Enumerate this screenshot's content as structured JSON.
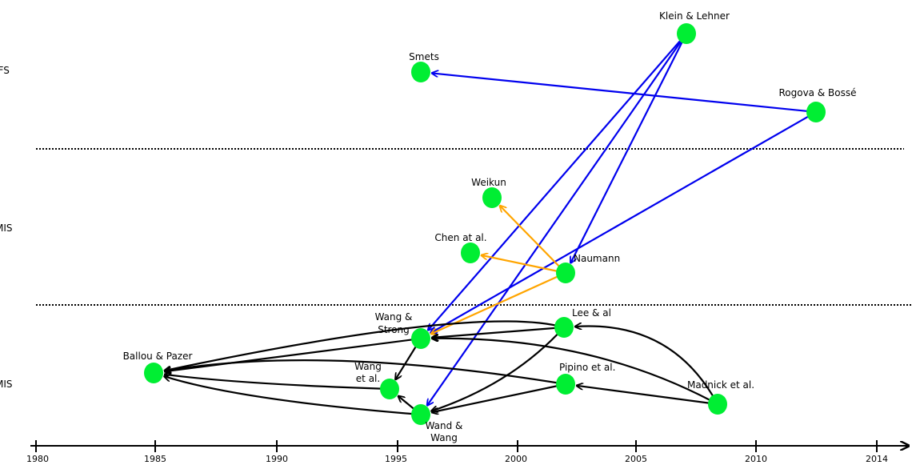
{
  "bands": [
    {
      "id": "ifs",
      "label": "IFS"
    },
    {
      "id": "mis2",
      "label": "MIS"
    },
    {
      "id": "mis1",
      "label": "MIS"
    }
  ],
  "timeline": {
    "ticks": [
      "1980",
      "1985",
      "1990",
      "1995",
      "2000",
      "2005",
      "2010",
      "2014"
    ]
  },
  "colors": {
    "node": "#00ee33",
    "black_edge": "#000000",
    "blue_edge": "#0000ee",
    "orange_edge": "#ffa500",
    "separator": "#000000"
  },
  "nodes": [
    {
      "id": "smets",
      "label": "Smets"
    },
    {
      "id": "klein",
      "label": "Klein & Lehner"
    },
    {
      "id": "rogova",
      "label": "Rogova & Bossé"
    },
    {
      "id": "weikun",
      "label": "Weikun"
    },
    {
      "id": "chen",
      "label": "Chen at al."
    },
    {
      "id": "naumann",
      "label": "Naumann"
    },
    {
      "id": "wangstrong",
      "label": "Wang &\nStrong"
    },
    {
      "id": "lee",
      "label": "Lee & al"
    },
    {
      "id": "ballou",
      "label": "Ballou & Pazer"
    },
    {
      "id": "pipino",
      "label": "Pipino et al."
    },
    {
      "id": "madnick",
      "label": "Madnick et al."
    },
    {
      "id": "wangetal",
      "label": "Wang\net al."
    },
    {
      "id": "wandwang",
      "label": "Wand &\nWang"
    }
  ],
  "edges": [
    {
      "from": "rogova",
      "to": "smets",
      "color": "blue"
    },
    {
      "from": "rogova",
      "to": "wangstrong",
      "color": "blue"
    },
    {
      "from": "klein",
      "to": "wangstrong",
      "color": "blue"
    },
    {
      "from": "klein",
      "to": "naumann",
      "color": "blue"
    },
    {
      "from": "klein",
      "to": "wandwang",
      "color": "blue"
    },
    {
      "from": "naumann",
      "to": "weikun",
      "color": "orange"
    },
    {
      "from": "naumann",
      "to": "chen",
      "color": "orange"
    },
    {
      "from": "naumann",
      "to": "wangstrong",
      "color": "orange"
    },
    {
      "from": "wangstrong",
      "to": "ballou",
      "color": "black"
    },
    {
      "from": "wangstrong",
      "to": "wangetal",
      "color": "black"
    },
    {
      "from": "lee",
      "to": "wangstrong",
      "color": "black"
    },
    {
      "from": "lee",
      "to": "ballou",
      "color": "black"
    },
    {
      "from": "lee",
      "to": "wandwang",
      "color": "black"
    },
    {
      "from": "pipino",
      "to": "ballou",
      "color": "black"
    },
    {
      "from": "pipino",
      "to": "wandwang",
      "color": "black"
    },
    {
      "from": "madnick",
      "to": "lee",
      "color": "black"
    },
    {
      "from": "madnick",
      "to": "pipino",
      "color": "black"
    },
    {
      "from": "madnick",
      "to": "wangstrong",
      "color": "black"
    },
    {
      "from": "wangetal",
      "to": "ballou",
      "color": "black"
    },
    {
      "from": "wandwang",
      "to": "ballou",
      "color": "black"
    },
    {
      "from": "wandwang",
      "to": "wangetal",
      "color": "black"
    }
  ]
}
